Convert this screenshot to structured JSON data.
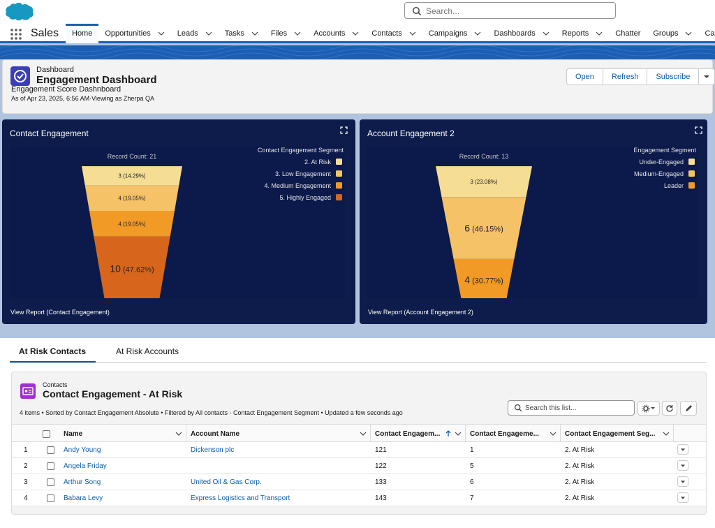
{
  "header": {
    "search_placeholder": "Search..."
  },
  "nav": {
    "app_name": "Sales",
    "tabs": [
      {
        "label": "Home",
        "chevron": false
      },
      {
        "label": "Opportunities",
        "chevron": true
      },
      {
        "label": "Leads",
        "chevron": true
      },
      {
        "label": "Tasks",
        "chevron": true
      },
      {
        "label": "Files",
        "chevron": true
      },
      {
        "label": "Accounts",
        "chevron": true
      },
      {
        "label": "Contacts",
        "chevron": true
      },
      {
        "label": "Campaigns",
        "chevron": true
      },
      {
        "label": "Dashboards",
        "chevron": true
      },
      {
        "label": "Reports",
        "chevron": true
      },
      {
        "label": "Chatter",
        "chevron": false
      },
      {
        "label": "Groups",
        "chevron": true
      },
      {
        "label": "Calendar",
        "chevron": false
      }
    ]
  },
  "dashboard": {
    "eyebrow": "Dashboard",
    "title": "Engagement Dashboard",
    "subtitle": "Engagement Score Dashnboard",
    "as_of": "As of Apr 23, 2025, 6:56 AM·Viewing as Zherpa QA",
    "buttons": {
      "open": "Open",
      "refresh": "Refresh",
      "subscribe": "Subscribe"
    }
  },
  "cards": [
    {
      "title": "Contact Engagement",
      "view_report": "View Report (Contact Engagement)",
      "record_count": "Record Count: 21",
      "legend_title": "Contact Engagement Segment"
    },
    {
      "title": "Account Engagement 2",
      "view_report": "View Report (Account Engagement 2)",
      "record_count": "Record Count: 13",
      "legend_title": "Engagement Segment"
    }
  ],
  "chart_data": [
    {
      "type": "funnel",
      "title": "Contact Engagement",
      "total_label": "Record Count: 21",
      "legend_title": "Contact Engagement Segment",
      "legend_position": "top-right",
      "legend": [
        "2. At Risk",
        "3. Low Engagement",
        "4. Medium Engagement",
        "5. Highly Engaged"
      ],
      "segments": [
        {
          "name": "2. At Risk",
          "value": 3,
          "pct": "14.29%",
          "color": "#f5dd94"
        },
        {
          "name": "3. Low Engagement",
          "value": 4,
          "pct": "19.05%",
          "color": "#f5c267"
        },
        {
          "name": "4. Medium Engagement",
          "value": 4,
          "pct": "19.05%",
          "color": "#f29a26"
        },
        {
          "name": "5. Highly Engaged",
          "value": 10,
          "pct": "47.62%",
          "color": "#d7661c"
        }
      ]
    },
    {
      "type": "funnel",
      "title": "Account Engagement 2",
      "total_label": "Record Count: 13",
      "legend_title": "Engagement Segment",
      "legend_position": "top-right",
      "legend": [
        "Under-Engaged",
        "Medium-Engaged",
        "Leader"
      ],
      "segments": [
        {
          "name": "Under-Engaged",
          "value": 3,
          "pct": "23.08%",
          "color": "#f5dd94"
        },
        {
          "name": "Medium-Engaged",
          "value": 6,
          "pct": "46.15%",
          "color": "#f5c267"
        },
        {
          "name": "Leader",
          "value": 4,
          "pct": "30.77%",
          "color": "#f29a26"
        }
      ]
    }
  ],
  "tabs": {
    "at_risk_contacts": "At Risk Contacts",
    "at_risk_accounts": "At Risk Accounts"
  },
  "list": {
    "eyebrow": "Contacts",
    "title": "Contact Engagement - At Risk",
    "info": "4 items • Sorted by Contact Engagement Absolute • Filtered by All contacts - Contact Engagement Segment • Updated a few seconds ago",
    "search_placeholder": "Search this list...",
    "columns": [
      "Name",
      "Account Name",
      "Contact Engagem...",
      "Contact Engageme...",
      "Contact Engagement Seg..."
    ],
    "rows": [
      {
        "num": "1",
        "name": "Andy Young",
        "account": "Dickenson plc",
        "absolute": "121",
        "score": "1",
        "segment": "2. At Risk"
      },
      {
        "num": "2",
        "name": "Angela Friday",
        "account": "",
        "absolute": "122",
        "score": "5",
        "segment": "2. At Risk"
      },
      {
        "num": "3",
        "name": "Arthur Song",
        "account": "United Oil & Gas Corp.",
        "absolute": "133",
        "score": "6",
        "segment": "2. At Risk"
      },
      {
        "num": "4",
        "name": "Babara Levy",
        "account": "Express Logistics and Transport",
        "absolute": "143",
        "score": "7",
        "segment": "2. At Risk"
      }
    ]
  },
  "colors": {
    "brand_blue": "#1b5fb5",
    "card_bg": "#0d1c4a",
    "link": "#0b5cab"
  }
}
